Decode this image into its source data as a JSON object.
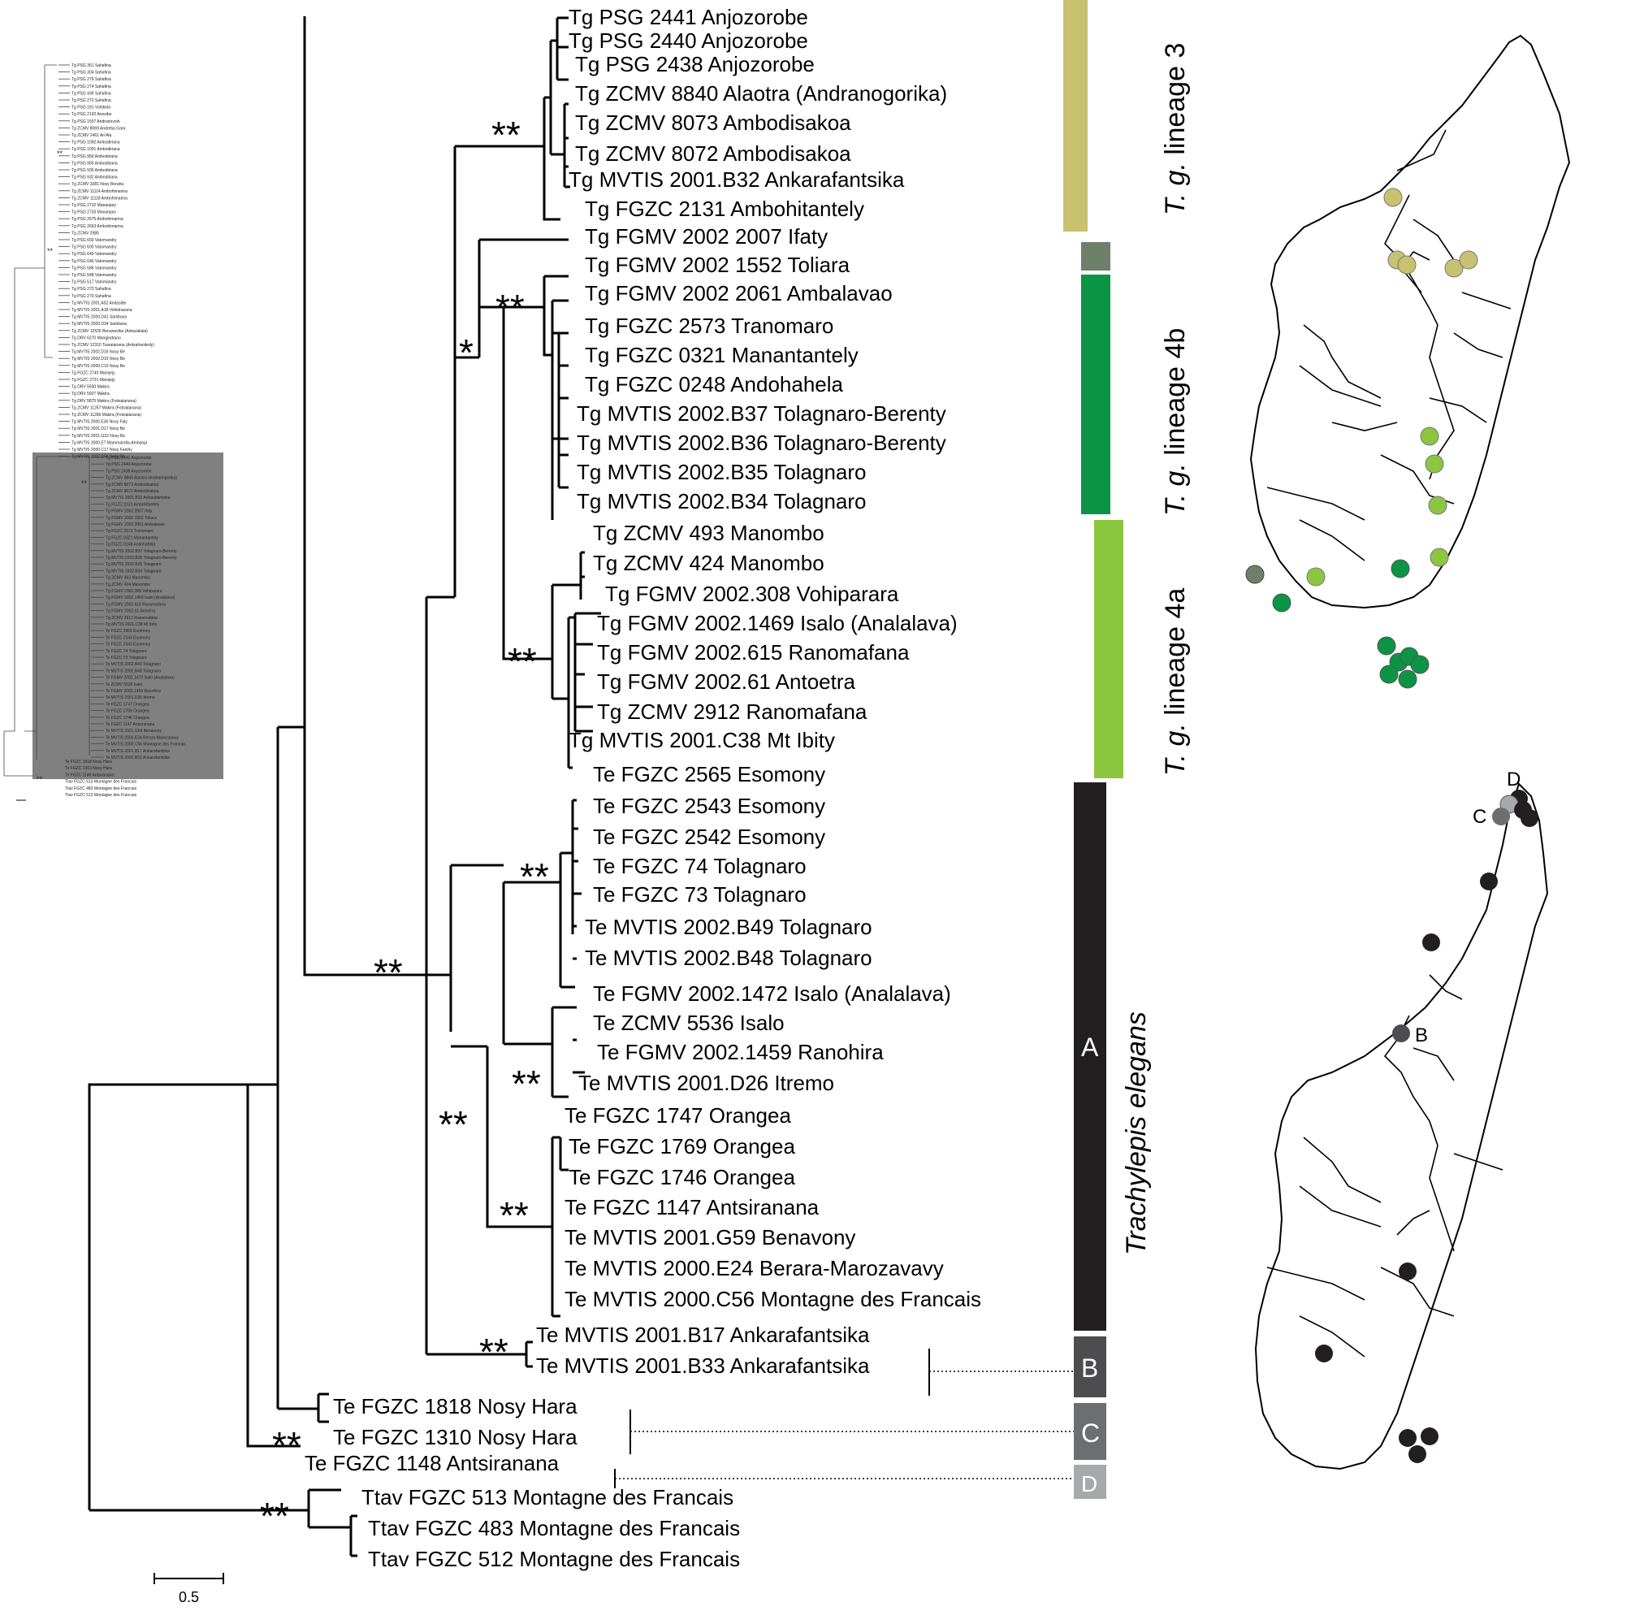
{
  "phylogeny": {
    "taxa": [
      "Tg PSG 2441 Anjozorobe",
      "Tg PSG 2440 Anjozorobe",
      "Tg  PSG 2438 Anjozorobe",
      "Tg  ZCMV 8840 Alaotra (Andranogorika)",
      "Tg  ZCMV 8073 Ambodisakoa",
      "Tg  ZCMV 8072 Ambodisakoa",
      "Tg MVTIS 2001.B32 Ankarafantsika",
      "Tg  FGZC 2131 Ambohitantely",
      "Tg  FGMV 2002 2007 Ifaty",
      "Tg  FGMV 2002 1552 Toliara",
      "Tg  FGMV 2002 2061 Ambalavao",
      "Tg  FGZC 2573 Tranomaro",
      "Tg  FGZC 0321 Manantantely",
      "Tg  FGZC 0248 Andohahela",
      "Tg MVTIS 2002.B37 Tolagnaro-Berenty",
      "Tg MVTIS 2002.B36 Tolagnaro-Berenty",
      "Tg MVTIS 2002.B35 Tolagnaro",
      "Tg MVTIS 2002.B34 Tolagnaro",
      "Tg  ZCMV 493 Manombo",
      "Tg  ZCMV 424 Manombo",
      "Tg  FGMV 2002.308 Vohiparara",
      "Tg  FGMV 2002.1469 Isalo (Analalava)",
      "Tg  FGMV 2002.615 Ranomafana",
      "Tg  FGMV 2002.61 Antoetra",
      "Tg  ZCMV 2912 Ranomafana",
      "Tg MVTIS 2001.C38 Mt Ibity",
      "Te  FGZC 2565 Esomony",
      "Te  FGZC 2543 Esomony",
      "Te  FGZC 2542 Esomony",
      "Te  FGZC 74 Tolagnaro",
      "Te  FGZC 73 Tolagnaro",
      "Te MVTIS 2002.B49 Tolagnaro",
      "Te MVTIS 2002.B48 Tolagnaro",
      "Te  FGMV 2002.1472 Isalo (Analalava)",
      "Te  ZCMV 5536 Isalo",
      "Te  FGMV 2002.1459 Ranohira",
      "Te MVTIS 2001.D26 Itremo",
      "Te  FGZC 1747 Orangea",
      "Te  FGZC 1769 Orangea",
      "Te  FGZC 1746 Orangea",
      "Te  FGZC 1147 Antsiranana",
      "Te MVTIS 2001.G59 Benavony",
      "Te MVTIS 2000.E24 Berara-Marozavavy",
      "Te MVTIS 2000.C56 Montagne des Francais",
      "Te MVTIS 2001.B17 Ankarafantsika",
      "Te MVTIS 2001.B33 Ankarafantsika",
      "Te  FGZC 1818 Nosy Hara",
      "Te  FGZC 1310 Nosy Hara",
      "Te  FGZC 1148 Antsiranana",
      "Ttav FGZC 513 Montagne des Francais",
      "Ttav  FGZC 483 Montagne des Francais",
      "Ttav  FGZC 512 Montagne des Francais"
    ],
    "support_double": "**",
    "support_single": "*",
    "scale_label": "0.5"
  },
  "lineages": {
    "lineage3": {
      "species": "T. g.",
      "name": " lineage 3",
      "color": "#c8c16f"
    },
    "lineage4b": {
      "species": "T. g.",
      "name": " lineage 4b",
      "color": "#0b9444",
      "ifaty_color": "#6e7f6a"
    },
    "lineage4a": {
      "species": "T. g.",
      "name": " lineage 4a",
      "color": "#8cc63f"
    },
    "elegans": {
      "species": "Trachylepis elegans"
    }
  },
  "clades": {
    "A": {
      "label": "A",
      "color": "#231f20"
    },
    "B": {
      "label": "B",
      "color": "#4d4d4f"
    },
    "C": {
      "label": "C",
      "color": "#6d6e70"
    },
    "D": {
      "label": "D",
      "color": "#a7a9ac"
    }
  },
  "overview_tree": {
    "taxa": [
      "Tg PSG 351 Sahafina",
      "Tg PSG 304 Sahafina",
      "Tg PSG 276 Sahafina",
      "Tg PSG 274 Sahafina",
      "Tg PSG 439 Sahafina",
      "Tg PSG 272 Sahafina",
      "Tg PSG 181 Vohibola",
      "Tg PSG 2192 Anosibe",
      "Tg PSG 1507 Andranovolo",
      "Tg ZCMV 8069 Andreba Gara",
      "Tg ZCMV 2461 An'Ala",
      "Tg PSG 1092 Ambodiriana",
      "Tg PSG 1091 Ambodiriana",
      "Tg PSG 956 Ambodiriana",
      "Tg PSG 955 Ambodiriana",
      "Tg PSG 935 Ambodiriana",
      "Tg PSG 932 Ambodiriana",
      "Tg ZCMV 3381 Nosy Boraha",
      "Tg ZCMV 11114 Ambohimarina",
      "Tg ZCMV 11118 Ambohimarina",
      "Tg PSG 2732 Mananjary",
      "Tg PSG 2733 Mananjary",
      "Tg PSG 2675 Ambohimarina",
      "Tg PSG 2663 Ambohimarina",
      "Tg ZCMV 2985",
      "Tg PSG 650 Vatomandry",
      "Tg PSG 600 Vatomandry",
      "Tg PSG 649 Vatomandry",
      "Tg PSG 646 Vatomandry",
      "Tg PSG 586 Vatomandry",
      "Tg PSG 548 Vatomandry",
      "Tg PSG 517 Vatomandry",
      "Tg PSG 273 Sahafina",
      "Tg PSG 270 Sahafina",
      "Tg MVTIS 2001.A52 Andasibe",
      "Tg MVTIS 2001.A18 Vohidrazana",
      "Tg MVTIS 2000.D41 Sambava",
      "Tg MVTIS 2000.D34 Sambava",
      "Tg ZCMV 12526 Benanevika (Ankarakala)",
      "Tg DRV 6270 Mangindrano",
      "Tg ZCMV 12310 Tsaratanana (Antsahanitedy)",
      "Tg MVTIS 2002.D16 Nosy Be",
      "Tg MVTIS 2002.D15 Nosy Be",
      "Tg MVTIS 2000.C15 Nosy Be",
      "Tg FGZC 2740 Marojejy",
      "Tg FGZC 2731 Marojejy",
      "Tg DRV 5930 Makira",
      "Tg DRV 5927 Makira",
      "Tg DRV 5875 Makira (Fotsialanana)",
      "Tg ZCMV 11267 Makira (Fotsialanana)",
      "Tg ZCMV 11266 Makira (Fotsialanana)",
      "Tg MVTIS 2000.E36 Nosy Faly",
      "Tg MVTIS 2001.D17 Nosy Be",
      "Tg MVTIS 2001.G32 Nosy Be",
      "Tg MVTIS 2000.E7 Maromandia-Ambanja",
      "Tg MVTIS 2000.C17 Nosy Fanihy",
      "Tg MVTIS 2000.B58 Nosy Be"
    ],
    "lower_taxa": [
      "Te FGZC 1818 Nosy Hara",
      "Te FGZC 1310 Nosy Hara",
      "Te FGZC 1148 Antsiranana",
      "Ttav FGZC 513 Montagne des Francais",
      "Ttav FGZC 483 Montagne des Francais",
      "Ttav FGZC 512 Montagne des Francais"
    ],
    "shade_color": "#808080",
    "support": "**"
  },
  "maps": {
    "top": {
      "points": [
        "lineage3",
        "lineage3",
        "lineage3",
        "lineage3",
        "lineage3",
        "lineage4a",
        "lineage4a",
        "lineage4a",
        "lineage4a",
        "lineage4a",
        "lineage4a",
        "lineage4b",
        "lineage4b",
        "lineage4b",
        "lineage4b",
        "lineage4b",
        "lineage4b",
        "lineage4b",
        "lineage4b",
        "ifaty"
      ]
    },
    "bottom": {
      "labels": [
        "D",
        "C",
        "B"
      ]
    }
  }
}
